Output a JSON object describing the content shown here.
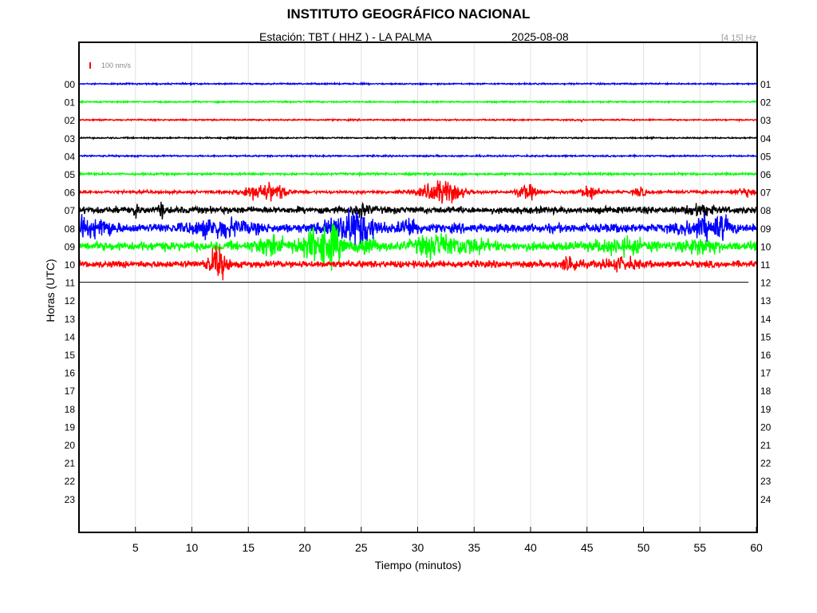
{
  "header": {
    "title": "INSTITUTO GEOGRÁFICO NACIONAL",
    "station_label": "Estación:  TBT ( HHZ ) - LA PALMA",
    "date": "2025-08-08",
    "band": "[4 15] Hz"
  },
  "chart_data": {
    "type": "seismogram",
    "xlabel": "Tiempo (minutos)",
    "ylabel": "Horas (UTC)",
    "xlim": [
      0,
      60
    ],
    "x_ticks": [
      "5",
      "10",
      "15",
      "20",
      "25",
      "30",
      "35",
      "40",
      "45",
      "50",
      "55",
      "60"
    ],
    "left_ticks": [
      "00",
      "01",
      "02",
      "03",
      "04",
      "05",
      "06",
      "07",
      "08",
      "09",
      "10",
      "11",
      "12",
      "13",
      "14",
      "15",
      "16",
      "17",
      "18",
      "19",
      "20",
      "21",
      "22",
      "23"
    ],
    "right_ticks": [
      "01",
      "02",
      "03",
      "04",
      "05",
      "06",
      "07",
      "08",
      "09",
      "10",
      "11",
      "12",
      "13",
      "14",
      "15",
      "16",
      "17",
      "18",
      "19",
      "20",
      "21",
      "22",
      "23",
      "24"
    ],
    "scale_label": "100 nm/s",
    "scale_color": "#ff0000",
    "grid": true,
    "trace_colors": [
      "#0000ff",
      "#00ff00",
      "#ff0000",
      "#000000"
    ],
    "traces": [
      {
        "hour": 0,
        "color": "#0000ff",
        "noise": 1.2,
        "events": []
      },
      {
        "hour": 1,
        "color": "#00ff00",
        "noise": 1.2,
        "events": []
      },
      {
        "hour": 2,
        "color": "#ff0000",
        "noise": 1.2,
        "events": [
          [
            44.5,
            0.1,
            3
          ]
        ]
      },
      {
        "hour": 3,
        "color": "#000000",
        "noise": 1.2,
        "events": []
      },
      {
        "hour": 4,
        "color": "#0000ff",
        "noise": 1.3,
        "events": []
      },
      {
        "hour": 5,
        "color": "#00ff00",
        "noise": 1.8,
        "events": []
      },
      {
        "hour": 6,
        "color": "#ff0000",
        "noise": 2.5,
        "events": [
          [
            15.5,
            1.2,
            10
          ],
          [
            17.2,
            1.2,
            14
          ],
          [
            32.2,
            1.8,
            20
          ],
          [
            39.7,
            0.9,
            12
          ],
          [
            45.3,
            0.8,
            12
          ],
          [
            49.7,
            0.5,
            9
          ],
          [
            59.0,
            0.8,
            6
          ]
        ]
      },
      {
        "hour": 7,
        "color": "#000000",
        "noise": 6,
        "events": [
          [
            5.0,
            0.2,
            14
          ],
          [
            7.3,
            0.2,
            14
          ],
          [
            25.0,
            0.8,
            8
          ],
          [
            55.0,
            1.0,
            9
          ]
        ]
      },
      {
        "hour": 8,
        "color": "#0000ff",
        "noise": 8,
        "events": [
          [
            0.3,
            0.5,
            18
          ],
          [
            2.0,
            1.0,
            14
          ],
          [
            12.5,
            2.5,
            13
          ],
          [
            23.8,
            1.8,
            22
          ],
          [
            25.2,
            1.2,
            16
          ],
          [
            29.3,
            0.8,
            15
          ],
          [
            55.2,
            1.5,
            16
          ],
          [
            57.0,
            0.8,
            12
          ]
        ]
      },
      {
        "hour": 9,
        "color": "#00ff00",
        "noise": 8,
        "events": [
          [
            17.0,
            1.2,
            15
          ],
          [
            21.0,
            1.6,
            24
          ],
          [
            22.5,
            0.8,
            20
          ],
          [
            25.5,
            0.8,
            12
          ],
          [
            31.5,
            1.6,
            18
          ],
          [
            34.5,
            1.5,
            11
          ],
          [
            48.0,
            2.0,
            10
          ],
          [
            55.0,
            1.5,
            11
          ]
        ]
      },
      {
        "hour": 10,
        "color": "#ff0000",
        "noise": 6,
        "events": [
          [
            12.3,
            0.8,
            26
          ],
          [
            43.5,
            0.6,
            14
          ],
          [
            48.0,
            1.5,
            8
          ]
        ]
      }
    ],
    "last_trace_end_minute": 59.3
  }
}
